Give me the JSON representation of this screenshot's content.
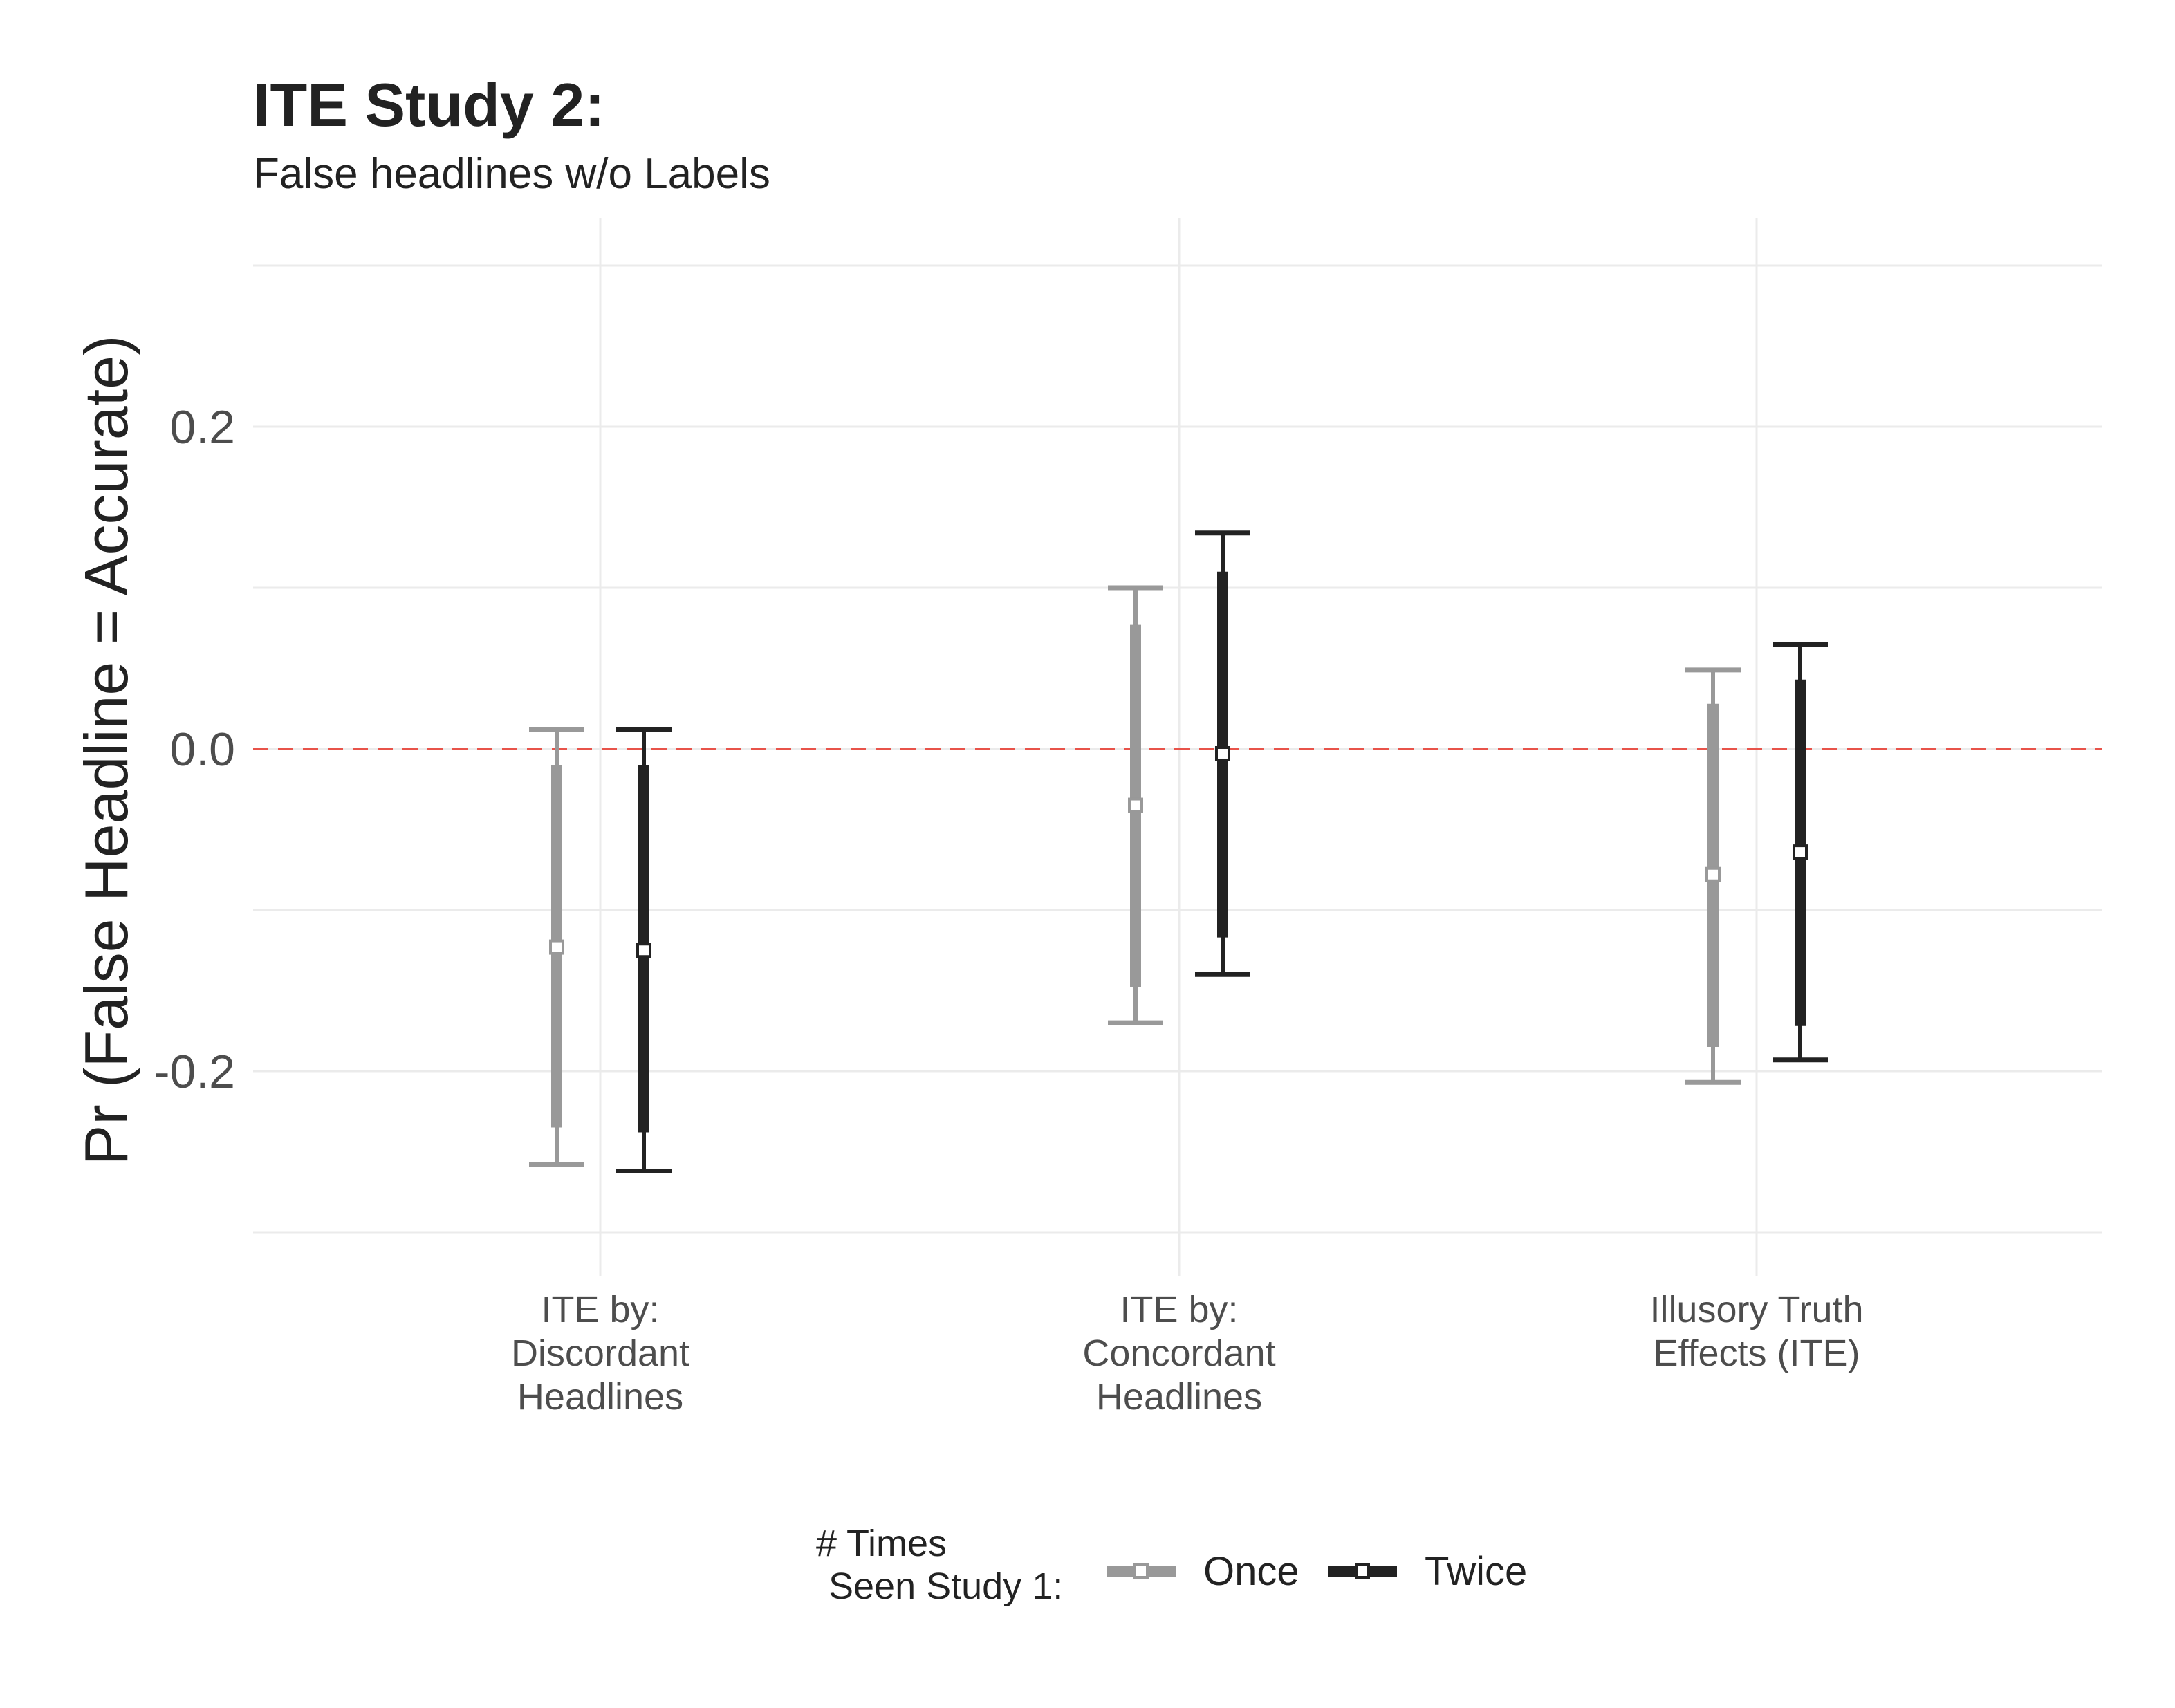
{
  "chart_data": {
    "type": "errorbar",
    "title": "ITE Study 2:",
    "subtitle": "False headlines w/o Labels",
    "xlabel": "",
    "ylabel": "Pr (False Headline = Accurate)",
    "ylim": [
      -0.3,
      0.3
    ],
    "yticks": [
      -0.2,
      0.0,
      0.2
    ],
    "ytick_labels": [
      "-0.2",
      "0.0",
      "0.2"
    ],
    "grid": true,
    "reference_line": {
      "y": 0.0,
      "style": "dashed",
      "color": "#e8534a"
    },
    "categories": [
      [
        "ITE by:",
        "Discordant",
        "Headlines"
      ],
      [
        "ITE by:",
        "Concordant",
        "Headlines"
      ],
      [
        "Illusory Truth",
        "Effects (ITE)"
      ]
    ],
    "legend": {
      "title": [
        "# Times",
        "Seen Study 1:"
      ],
      "placement": "bottom"
    },
    "series": [
      {
        "name": "Once",
        "color": "#999999",
        "estimate": [
          -0.123,
          -0.035,
          -0.078
        ],
        "ci_inner": [
          [
            -0.235,
            -0.01
          ],
          [
            -0.148,
            0.077
          ],
          [
            -0.185,
            0.028
          ]
        ],
        "ci_outer": [
          [
            -0.258,
            0.012
          ],
          [
            -0.17,
            0.1
          ],
          [
            -0.207,
            0.049
          ]
        ]
      },
      {
        "name": "Twice",
        "color": "#222222",
        "estimate": [
          -0.125,
          -0.003,
          -0.064
        ],
        "ci_inner": [
          [
            -0.238,
            -0.01
          ],
          [
            -0.117,
            0.11
          ],
          [
            -0.172,
            0.043
          ]
        ],
        "ci_outer": [
          [
            -0.262,
            0.012
          ],
          [
            -0.14,
            0.134
          ],
          [
            -0.193,
            0.065
          ]
        ]
      }
    ]
  }
}
